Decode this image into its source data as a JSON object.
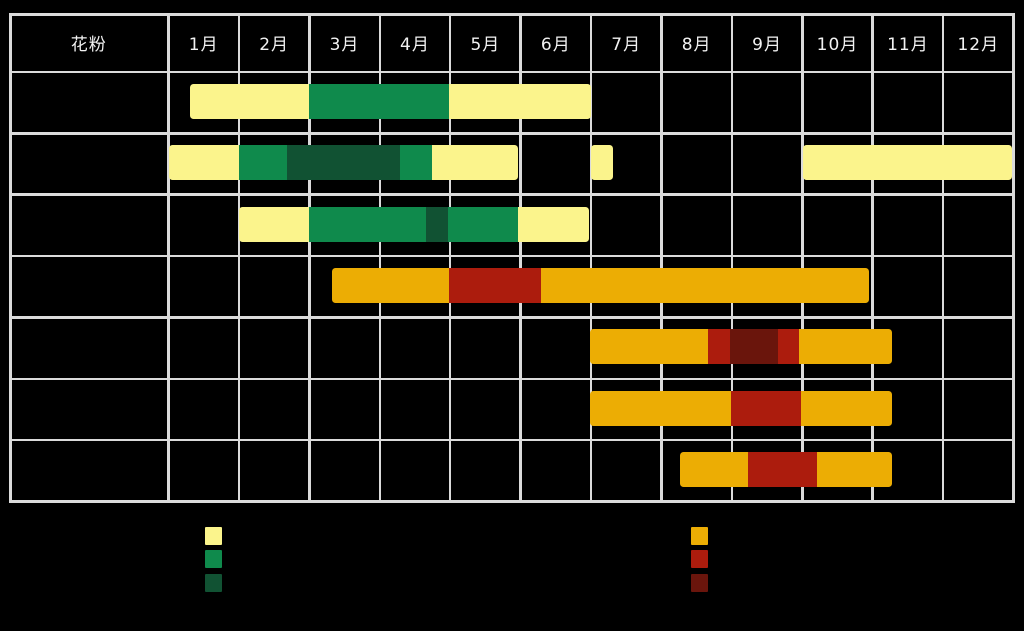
{
  "page": {
    "background": "#000000"
  },
  "colors": {
    "grid": "#dbdbdb",
    "header_text": "#f2f2f2",
    "levels": {
      "yellow": "#fbf48c",
      "green": "#0f8a4c",
      "dark_green": "#115233",
      "orange": "#ecad04",
      "red": "#ac1c0d",
      "dark_red": "#6a150c"
    }
  },
  "header": {
    "pollen_label": "花粉",
    "months": [
      "1月",
      "2月",
      "3月",
      "4月",
      "5月",
      "6月",
      "7月",
      "8月",
      "9月",
      "10月",
      "11月",
      "12月"
    ]
  },
  "chart_data": {
    "type": "table",
    "description": "Gantt-style pollen calendar: 7 unlabeled pollen rows across months 1月–12月; colored segments show season intensity (yellow/green/dark_green group and orange/red/dark_red group). Row label column header is 花粉. Row label cells and legend label text are not visible (black on black).",
    "x_unit": "month",
    "x_range": [
      1,
      13
    ],
    "rows": [
      {
        "label": "",
        "segments": [
          {
            "start": 1.31,
            "end": 3.0,
            "level": "yellow"
          },
          {
            "start": 3.0,
            "end": 4.98,
            "level": "green"
          },
          {
            "start": 4.98,
            "end": 7.0,
            "level": "yellow"
          }
        ]
      },
      {
        "label": "",
        "segments": [
          {
            "start": 1.01,
            "end": 2.0,
            "level": "yellow"
          },
          {
            "start": 2.0,
            "end": 2.68,
            "level": "green"
          },
          {
            "start": 2.68,
            "end": 4.29,
            "level": "dark_green"
          },
          {
            "start": 4.29,
            "end": 4.74,
            "level": "green"
          },
          {
            "start": 4.74,
            "end": 5.97,
            "level": "yellow"
          },
          {
            "start": 7.0,
            "end": 7.31,
            "level": "yellow"
          },
          {
            "start": 10.01,
            "end": 12.98,
            "level": "yellow"
          }
        ]
      },
      {
        "label": "",
        "segments": [
          {
            "start": 2.0,
            "end": 3.0,
            "level": "yellow"
          },
          {
            "start": 3.0,
            "end": 4.65,
            "level": "green"
          },
          {
            "start": 4.65,
            "end": 4.97,
            "level": "dark_green"
          },
          {
            "start": 4.97,
            "end": 5.96,
            "level": "green"
          },
          {
            "start": 5.96,
            "end": 6.97,
            "level": "yellow"
          }
        ]
      },
      {
        "label": "",
        "segments": [
          {
            "start": 3.32,
            "end": 4.98,
            "level": "orange"
          },
          {
            "start": 4.98,
            "end": 6.29,
            "level": "red"
          },
          {
            "start": 6.29,
            "end": 10.95,
            "level": "orange"
          }
        ]
      },
      {
        "label": "",
        "segments": [
          {
            "start": 6.99,
            "end": 8.66,
            "level": "orange"
          },
          {
            "start": 8.66,
            "end": 8.97,
            "level": "red"
          },
          {
            "start": 8.97,
            "end": 9.66,
            "level": "dark_red"
          },
          {
            "start": 9.66,
            "end": 9.95,
            "level": "red"
          },
          {
            "start": 9.95,
            "end": 11.28,
            "level": "orange"
          }
        ]
      },
      {
        "label": "",
        "segments": [
          {
            "start": 6.99,
            "end": 8.99,
            "level": "orange"
          },
          {
            "start": 8.99,
            "end": 9.98,
            "level": "red"
          },
          {
            "start": 9.98,
            "end": 11.28,
            "level": "orange"
          }
        ]
      },
      {
        "label": "",
        "segments": [
          {
            "start": 8.26,
            "end": 9.23,
            "level": "orange"
          },
          {
            "start": 9.23,
            "end": 10.21,
            "level": "red"
          },
          {
            "start": 10.21,
            "end": 11.28,
            "level": "orange"
          }
        ]
      }
    ],
    "legend": {
      "left_group_levels": [
        "yellow",
        "green",
        "dark_green"
      ],
      "right_group_levels": [
        "orange",
        "red",
        "dark_red"
      ],
      "labels_visible": false
    }
  }
}
